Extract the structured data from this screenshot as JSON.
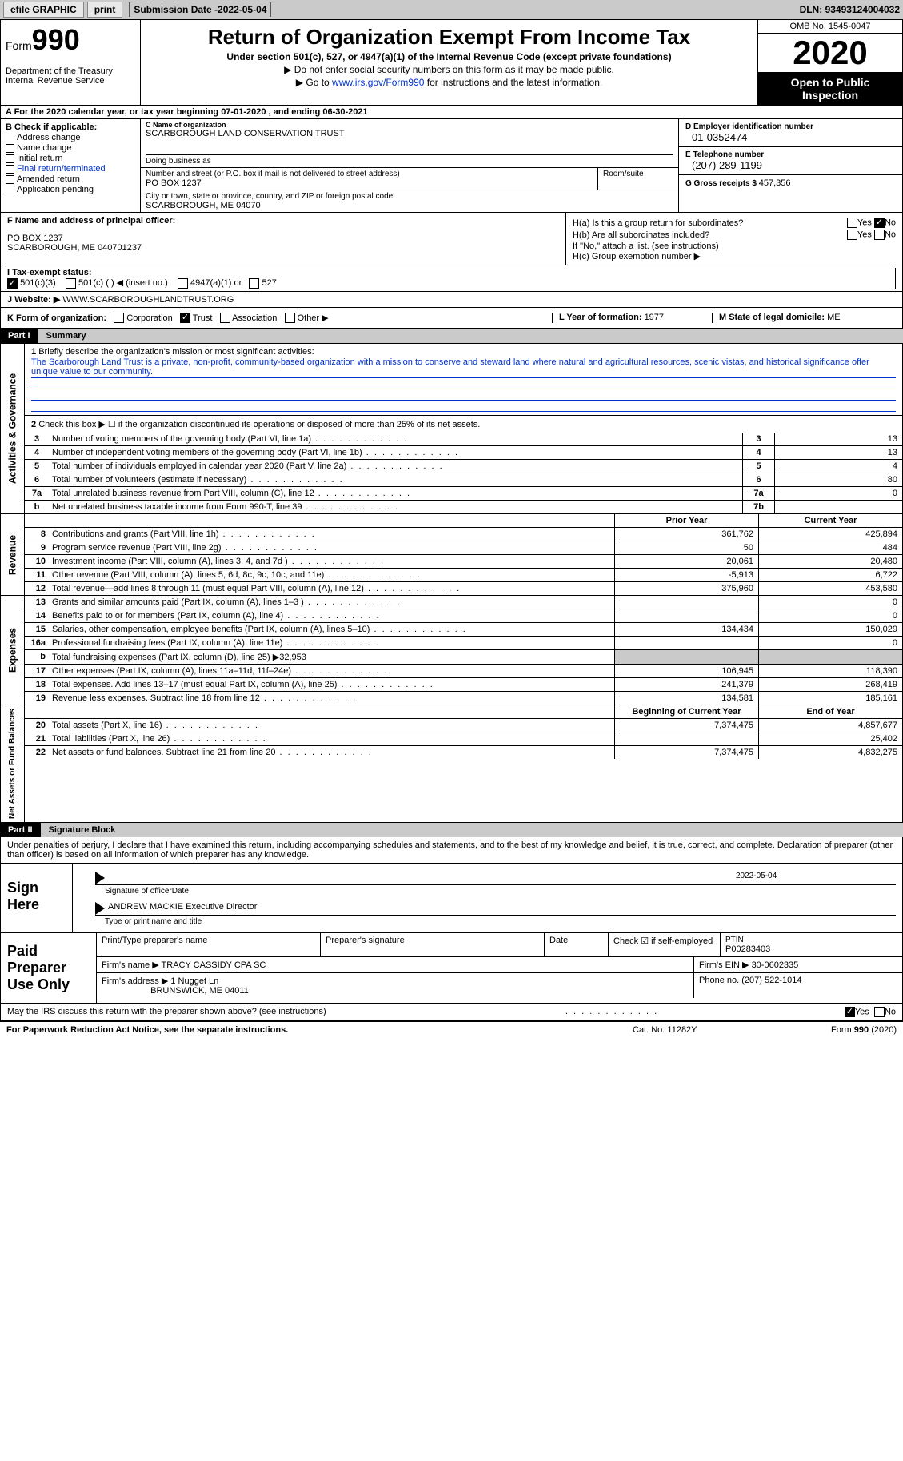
{
  "topbar": {
    "efile": "efile GRAPHIC",
    "print": "print",
    "submission_label": "Submission Date - ",
    "submission_date": "2022-05-04",
    "dln_label": "DLN: ",
    "dln": "93493124004032"
  },
  "header": {
    "form_label": "Form",
    "form_number": "990",
    "dept": "Department of the Treasury\nInternal Revenue Service",
    "title": "Return of Organization Exempt From Income Tax",
    "subtitle": "Under section 501(c), 527, or 4947(a)(1) of the Internal Revenue Code (except private foundations)",
    "instr1": "▶ Do not enter social security numbers on this form as it may be made public.",
    "instr2_pre": "▶ Go to ",
    "instr2_link": "www.irs.gov/Form990",
    "instr2_post": " for instructions and the latest information.",
    "omb": "OMB No. 1545-0047",
    "year": "2020",
    "open": "Open to Public Inspection"
  },
  "row_a": "A For the 2020 calendar year, or tax year beginning 07-01-2020   , and ending 06-30-2021",
  "box_b": {
    "title": "B Check if applicable:",
    "items": [
      "Address change",
      "Name change",
      "Initial return",
      "Final return/terminated",
      "Amended return",
      "Application pending"
    ]
  },
  "box_c": {
    "label": "C Name of organization",
    "name": "SCARBOROUGH LAND CONSERVATION TRUST",
    "dba_label": "Doing business as",
    "addr_label": "Number and street (or P.O. box if mail is not delivered to street address)",
    "addr": "PO BOX 1237",
    "room_label": "Room/suite",
    "city_label": "City or town, state or province, country, and ZIP or foreign postal code",
    "city": "SCARBOROUGH, ME  04070"
  },
  "box_d": {
    "label": "D Employer identification number",
    "val": "01-0352474"
  },
  "box_e": {
    "label": "E Telephone number",
    "val": "(207) 289-1199"
  },
  "box_g": {
    "label": "G Gross receipts $ ",
    "val": "457,356"
  },
  "box_f": {
    "label": "F Name and address of principal officer:",
    "addr1": "PO BOX 1237",
    "addr2": "SCARBOROUGH, ME  040701237"
  },
  "box_h": {
    "a_label": "H(a)  Is this a group return for subordinates?",
    "b_label": "H(b)  Are all subordinates included?",
    "note": "If \"No,\" attach a list. (see instructions)",
    "c_label": "H(c)  Group exemption number ▶"
  },
  "row_i": {
    "label": "I   Tax-exempt status:",
    "opts": [
      "501(c)(3)",
      "501(c) (  ) ◀ (insert no.)",
      "4947(a)(1) or",
      "527"
    ]
  },
  "row_j": {
    "label": "J   Website: ▶",
    "val": "WWW.SCARBOROUGHLANDTRUST.ORG"
  },
  "row_k": {
    "label": "K Form of organization:",
    "opts": [
      "Corporation",
      "Trust",
      "Association",
      "Other ▶"
    ],
    "l_label": "L Year of formation: ",
    "l_val": "1977",
    "m_label": "M State of legal domicile: ",
    "m_val": "ME"
  },
  "part1": {
    "num": "Part I",
    "title": "Summary"
  },
  "summary": {
    "q1": "Briefly describe the organization's mission or most significant activities:",
    "mission": "The Scarborough Land Trust is a private, non-profit, community-based organization with a mission to conserve and steward land where natural and agricultural resources, scenic vistas, and historical significance offer unique value to our community.",
    "q2": "Check this box ▶ ☐  if the organization discontinued its operations or disposed of more than 25% of its net assets.",
    "rows_gov": [
      {
        "n": "3",
        "d": "Number of voting members of the governing body (Part VI, line 1a)",
        "bn": "3",
        "bv": "13"
      },
      {
        "n": "4",
        "d": "Number of independent voting members of the governing body (Part VI, line 1b)",
        "bn": "4",
        "bv": "13"
      },
      {
        "n": "5",
        "d": "Total number of individuals employed in calendar year 2020 (Part V, line 2a)",
        "bn": "5",
        "bv": "4"
      },
      {
        "n": "6",
        "d": "Total number of volunteers (estimate if necessary)",
        "bn": "6",
        "bv": "80"
      },
      {
        "n": "7a",
        "d": "Total unrelated business revenue from Part VIII, column (C), line 12",
        "bn": "7a",
        "bv": "0"
      },
      {
        "n": "b",
        "d": "Net unrelated business taxable income from Form 990-T, line 39",
        "bn": "7b",
        "bv": ""
      }
    ],
    "col_py": "Prior Year",
    "col_cy": "Current Year",
    "revenue": [
      {
        "n": "8",
        "d": "Contributions and grants (Part VIII, line 1h)",
        "v1": "361,762",
        "v2": "425,894"
      },
      {
        "n": "9",
        "d": "Program service revenue (Part VIII, line 2g)",
        "v1": "50",
        "v2": "484"
      },
      {
        "n": "10",
        "d": "Investment income (Part VIII, column (A), lines 3, 4, and 7d )",
        "v1": "20,061",
        "v2": "20,480"
      },
      {
        "n": "11",
        "d": "Other revenue (Part VIII, column (A), lines 5, 6d, 8c, 9c, 10c, and 11e)",
        "v1": "-5,913",
        "v2": "6,722"
      },
      {
        "n": "12",
        "d": "Total revenue—add lines 8 through 11 (must equal Part VIII, column (A), line 12)",
        "v1": "375,960",
        "v2": "453,580"
      }
    ],
    "expenses": [
      {
        "n": "13",
        "d": "Grants and similar amounts paid (Part IX, column (A), lines 1–3 )",
        "v1": "",
        "v2": "0"
      },
      {
        "n": "14",
        "d": "Benefits paid to or for members (Part IX, column (A), line 4)",
        "v1": "",
        "v2": "0"
      },
      {
        "n": "15",
        "d": "Salaries, other compensation, employee benefits (Part IX, column (A), lines 5–10)",
        "v1": "134,434",
        "v2": "150,029"
      },
      {
        "n": "16a",
        "d": "Professional fundraising fees (Part IX, column (A), line 11e)",
        "v1": "",
        "v2": "0"
      },
      {
        "n": "b",
        "d": "Total fundraising expenses (Part IX, column (D), line 25) ▶32,953",
        "grey": true
      },
      {
        "n": "17",
        "d": "Other expenses (Part IX, column (A), lines 11a–11d, 11f–24e)",
        "v1": "106,945",
        "v2": "118,390"
      },
      {
        "n": "18",
        "d": "Total expenses. Add lines 13–17 (must equal Part IX, column (A), line 25)",
        "v1": "241,379",
        "v2": "268,419"
      },
      {
        "n": "19",
        "d": "Revenue less expenses. Subtract line 18 from line 12",
        "v1": "134,581",
        "v2": "185,161"
      }
    ],
    "col_bcy": "Beginning of Current Year",
    "col_eoy": "End of Year",
    "netassets": [
      {
        "n": "20",
        "d": "Total assets (Part X, line 16)",
        "v1": "7,374,475",
        "v2": "4,857,677"
      },
      {
        "n": "21",
        "d": "Total liabilities (Part X, line 26)",
        "v1": "",
        "v2": "25,402"
      },
      {
        "n": "22",
        "d": "Net assets or fund balances. Subtract line 21 from line 20",
        "v1": "7,374,475",
        "v2": "4,832,275"
      }
    ],
    "vlabels": {
      "gov": "Activities & Governance",
      "rev": "Revenue",
      "exp": "Expenses",
      "net": "Net Assets or Fund Balances"
    }
  },
  "part2": {
    "num": "Part II",
    "title": "Signature Block"
  },
  "sig": {
    "declaration": "Under penalties of perjury, I declare that I have examined this return, including accompanying schedules and statements, and to the best of my knowledge and belief, it is true, correct, and complete. Declaration of preparer (other than officer) is based on all information of which preparer has any knowledge.",
    "sign_here": "Sign Here",
    "sig_officer": "Signature of officer",
    "date_label": "Date",
    "date_val": "2022-05-04",
    "name_title": "ANDREW MACKIE Executive Director",
    "type_label": "Type or print name and title"
  },
  "preparer": {
    "label": "Paid Preparer Use Only",
    "h_name": "Print/Type preparer's name",
    "h_sig": "Preparer's signature",
    "h_date": "Date",
    "h_check": "Check ☑ if self-employed",
    "h_ptin_label": "PTIN",
    "h_ptin": "P00283403",
    "firm_name_label": "Firm's name   ▶",
    "firm_name": "TRACY CASSIDY CPA SC",
    "firm_ein_label": "Firm's EIN ▶",
    "firm_ein": "30-0602335",
    "firm_addr_label": "Firm's address ▶",
    "firm_addr1": "1 Nugget Ln",
    "firm_addr2": "BRUNSWICK, ME  04011",
    "phone_label": "Phone no. ",
    "phone": "(207) 522-1014"
  },
  "discuss": "May the IRS discuss this return with the preparer shown above? (see instructions)",
  "footer": {
    "left": "For Paperwork Reduction Act Notice, see the separate instructions.",
    "mid": "Cat. No. 11282Y",
    "right_pre": "Form ",
    "right_bold": "990",
    "right_post": " (2020)"
  },
  "yn": {
    "yes": "Yes",
    "no": "No"
  }
}
